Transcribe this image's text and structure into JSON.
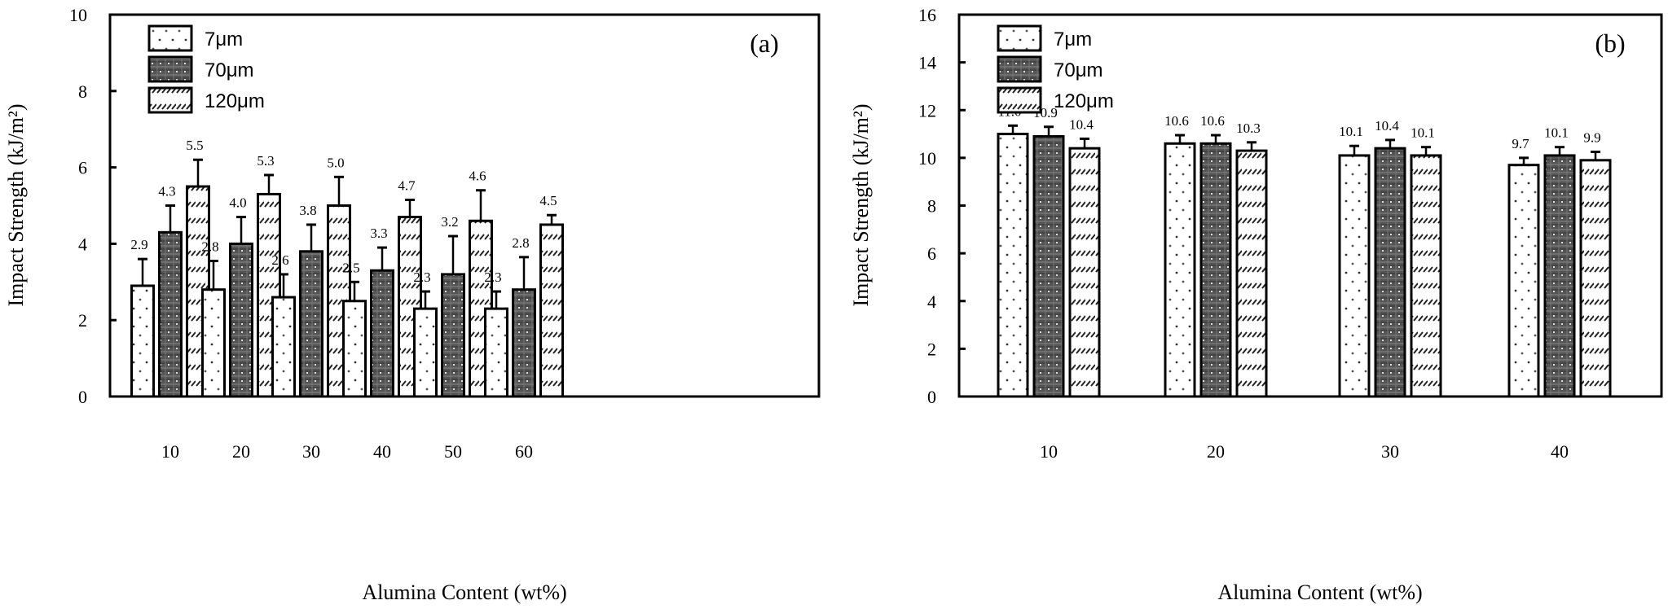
{
  "chart_data": [
    {
      "type": "bar",
      "panel_label": "(a)",
      "title": "",
      "xlabel": "Alumina Content (wt%)",
      "ylabel": "Impact Strength (kJ/m²)",
      "ylim": [
        0,
        10
      ],
      "yticks": [
        "0",
        "2",
        "4",
        "6",
        "8",
        "10"
      ],
      "categories": [
        "10",
        "20",
        "30",
        "40",
        "50",
        "60"
      ],
      "legend_position": "top-left",
      "grid": false,
      "series": [
        {
          "name": "7μm",
          "pattern": "dots",
          "values": [
            2.9,
            2.8,
            2.6,
            2.5,
            2.3,
            2.3
          ],
          "labels": [
            "2.9",
            "2.8",
            "2.6",
            "2.5",
            "2.3",
            "2.3"
          ],
          "error_top": [
            3.6,
            3.55,
            3.2,
            3.0,
            2.75,
            2.75
          ]
        },
        {
          "name": "70μm",
          "pattern": "dense-grid",
          "values": [
            4.3,
            4.0,
            3.8,
            3.3,
            3.2,
            2.8
          ],
          "labels": [
            "4.3",
            "4.0",
            "3.8",
            "3.3",
            "3.2",
            "2.8"
          ],
          "error_top": [
            5.0,
            4.7,
            4.5,
            3.9,
            4.2,
            3.65
          ]
        },
        {
          "name": "120μm",
          "pattern": "diagonal-dashes",
          "values": [
            5.5,
            5.3,
            5.0,
            4.7,
            4.6,
            4.5
          ],
          "labels": [
            "5.5",
            "5.3",
            "5.0",
            "4.7",
            "4.6",
            "4.5"
          ],
          "error_top": [
            6.2,
            5.8,
            5.75,
            5.15,
            5.4,
            4.75
          ]
        }
      ]
    },
    {
      "type": "bar",
      "panel_label": "(b)",
      "title": "",
      "xlabel": "Alumina Content (wt%)",
      "ylabel": "Impact Strength (kJ/m²)",
      "ylim": [
        0,
        16
      ],
      "yticks": [
        "0",
        "2",
        "4",
        "6",
        "8",
        "10",
        "12",
        "14",
        "16"
      ],
      "categories": [
        "10",
        "20",
        "30",
        "40"
      ],
      "legend_position": "top-left",
      "grid": false,
      "series": [
        {
          "name": "7μm",
          "pattern": "dots",
          "values": [
            11.0,
            10.6,
            10.1,
            9.7
          ],
          "labels": [
            "11.0",
            "10.6",
            "10.1",
            "9.7"
          ],
          "error_top": [
            11.35,
            10.95,
            10.5,
            10.0
          ]
        },
        {
          "name": "70μm",
          "pattern": "dense-grid",
          "values": [
            10.9,
            10.6,
            10.4,
            10.1
          ],
          "labels": [
            "10.9",
            "10.6",
            "10.4",
            "10.1"
          ],
          "error_top": [
            11.3,
            10.95,
            10.75,
            10.45
          ]
        },
        {
          "name": "120μm",
          "pattern": "diagonal-dashes",
          "values": [
            10.4,
            10.3,
            10.1,
            9.9
          ],
          "labels": [
            "10.4",
            "10.3",
            "10.1",
            "9.9"
          ],
          "error_top": [
            10.8,
            10.65,
            10.45,
            10.25
          ]
        }
      ]
    }
  ]
}
